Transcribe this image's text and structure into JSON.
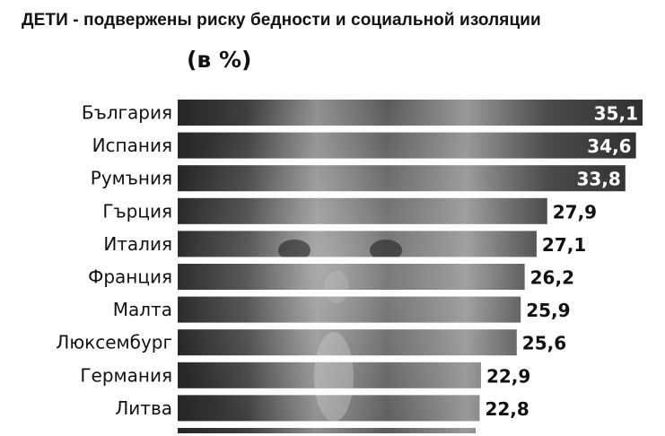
{
  "title": "ДЕТИ - подвержены риску бедности и социальной изоляции",
  "unit": "(в %)",
  "colors": {
    "background": "#ffffff",
    "bar_dark": "#2c2c2c",
    "bar_light": "#8a8a8a",
    "text": "#111111",
    "label_on_bar": "#ffffff"
  },
  "chart_data": {
    "type": "bar",
    "orientation": "horizontal",
    "title": "ДЕТИ - подвержены риску бедности и социальной изоляции",
    "ylabel": "(в %)",
    "categories": [
      "България",
      "Испания",
      "Румъния",
      "Гърция",
      "Италия",
      "Франция",
      "Малта",
      "Люксембург",
      "Германия",
      "Литва"
    ],
    "values": [
      35.1,
      34.6,
      33.8,
      27.9,
      27.1,
      26.2,
      25.9,
      25.6,
      22.9,
      22.8
    ],
    "value_labels": [
      "35,1",
      "34,6",
      "33,8",
      "27,9",
      "27,1",
      "26,2",
      "25,9",
      "25,6",
      "22,9",
      "22,8"
    ],
    "labels_inside_bars": [
      true,
      true,
      true,
      false,
      false,
      false,
      false,
      false,
      false,
      false
    ],
    "xlim": [
      0,
      35.1
    ],
    "grid": false,
    "legend": "none",
    "fill": "photo of a child"
  }
}
